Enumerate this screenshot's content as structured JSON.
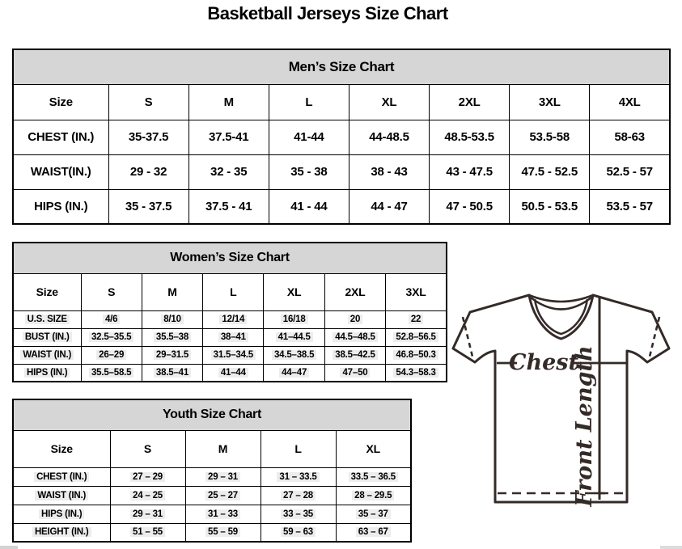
{
  "page_title": "Basketball Jerseys Size Chart",
  "tables": {
    "men": {
      "title": "Men’s Size Chart",
      "columns": [
        "Size",
        "S",
        "M",
        "L",
        "XL",
        "2XL",
        "3XL",
        "4XL"
      ],
      "rows": [
        {
          "label": "CHEST (IN.)",
          "values": [
            "35-37.5",
            "37.5-41",
            "41-44",
            "44-48.5",
            "48.5-53.5",
            "53.5-58",
            "58-63"
          ]
        },
        {
          "label": "WAIST(IN.)",
          "values": [
            "29 - 32",
            "32 - 35",
            "35 - 38",
            "38 - 43",
            "43 - 47.5",
            "47.5 - 52.5",
            "52.5 - 57"
          ]
        },
        {
          "label": "HIPS (IN.)",
          "values": [
            "35 - 37.5",
            "37.5 - 41",
            "41 - 44",
            "44 - 47",
            "47 - 50.5",
            "50.5 - 53.5",
            "53.5 - 57"
          ]
        }
      ]
    },
    "women": {
      "title": "Women’s Size Chart",
      "columns": [
        "Size",
        "S",
        "M",
        "L",
        "XL",
        "2XL",
        "3XL"
      ],
      "rows": [
        {
          "label": "U.S. SIZE",
          "values": [
            "4/6",
            "8/10",
            "12/14",
            "16/18",
            "20",
            "22"
          ]
        },
        {
          "label": "BUST (IN.)",
          "values": [
            "32.5–35.5",
            "35.5–38",
            "38–41",
            "41–44.5",
            "44.5–48.5",
            "52.8–56.5"
          ]
        },
        {
          "label": "WAIST (IN.)",
          "values": [
            "26–29",
            "29–31.5",
            "31.5–34.5",
            "34.5–38.5",
            "38.5–42.5",
            "46.8–50.3"
          ]
        },
        {
          "label": "HIPS (IN.)",
          "values": [
            "35.5–58.5",
            "38.5–41",
            "41–44",
            "44–47",
            "47–50",
            "54.3–58.3"
          ]
        }
      ]
    },
    "youth": {
      "title": "Youth Size Chart",
      "columns": [
        "Size",
        "S",
        "M",
        "L",
        "XL"
      ],
      "rows": [
        {
          "label": "CHEST (IN.)",
          "values": [
            "27 – 29",
            "29 – 31",
            "31 – 33.5",
            "33.5 – 36.5"
          ]
        },
        {
          "label": "WAIST (IN.)",
          "values": [
            "24 – 25",
            "25 – 27",
            "27 – 28",
            "28 – 29.5"
          ]
        },
        {
          "label": "HIPS (IN.)",
          "values": [
            "29 – 31",
            "31 – 33",
            "33 – 35",
            "35 – 37"
          ]
        },
        {
          "label": "HEIGHT (IN.)",
          "values": [
            "51 – 55",
            "55 – 59",
            "59 – 63",
            "63 – 67"
          ]
        }
      ]
    }
  },
  "diagram": {
    "chest_label": "Chest",
    "front_length_label": "Front Length"
  },
  "colors": {
    "table_header_bg": "#d6d6d6",
    "border": "#000000",
    "diagram_ink": "#342b28"
  }
}
